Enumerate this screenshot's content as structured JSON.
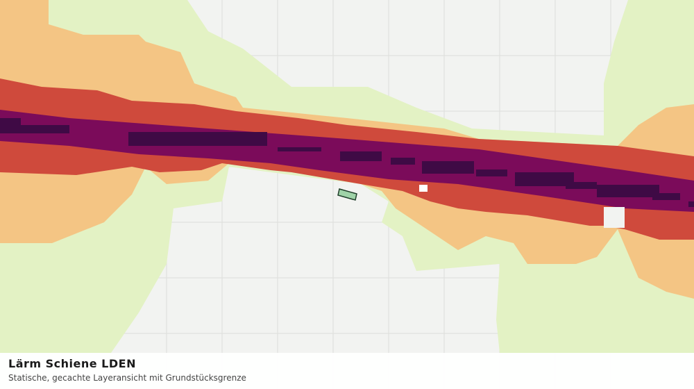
{
  "footer": {
    "title": "Lärm Schiene LDEN",
    "subtitle": "Statische, gecachte Layeransicht mit Grundstücksgrenze"
  }
}
